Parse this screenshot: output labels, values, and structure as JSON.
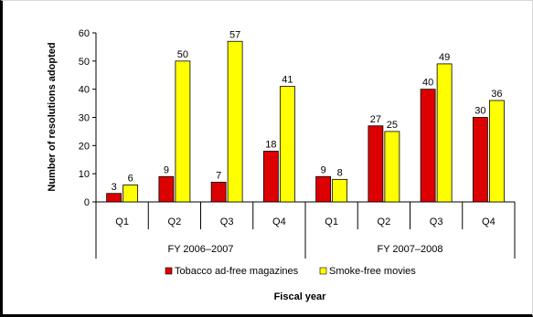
{
  "chart_data": {
    "type": "bar",
    "groups": [
      {
        "label": "FY 2006–2007",
        "quarters": [
          "Q1",
          "Q2",
          "Q3",
          "Q4"
        ]
      },
      {
        "label": "FY 2007–2008",
        "quarters": [
          "Q1",
          "Q2",
          "Q3",
          "Q4"
        ]
      }
    ],
    "series": [
      {
        "name": "Tobacco ad-free magazines",
        "color": "#dd0000",
        "values": [
          3,
          9,
          7,
          18,
          9,
          27,
          40,
          30
        ]
      },
      {
        "name": "Smoke-free movies",
        "color": "#ffff00",
        "values": [
          6,
          50,
          57,
          41,
          8,
          25,
          49,
          36
        ]
      }
    ],
    "xlabel": "Fiscal year",
    "ylabel": "Number of resolutions adopted",
    "ylim": [
      0,
      60
    ],
    "yticks": [
      0,
      10,
      20,
      30,
      40,
      50,
      60
    ],
    "legend_position": "bottom",
    "grid": false
  }
}
